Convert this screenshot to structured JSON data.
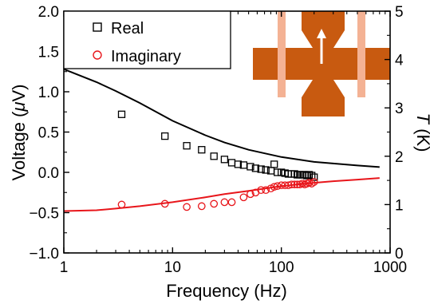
{
  "chart_data": {
    "type": "scatter",
    "xlabel": "Frequency (Hz)",
    "ylabel": "Voltage (μV)",
    "ylabel_parts": [
      "Voltage (",
      "μ",
      "V)"
    ],
    "y2label": "T (K)",
    "y2label_parts": [
      "T",
      " (K)"
    ],
    "x_scale": "log",
    "xlim": [
      1,
      1000
    ],
    "ylim": [
      -1.0,
      2.0
    ],
    "y2lim": [
      0,
      5
    ],
    "grid": false,
    "legend_position": "top-left",
    "x_ticks": [
      {
        "value": 1,
        "label": "1"
      },
      {
        "value": 10,
        "label": "10"
      },
      {
        "value": 100,
        "label": "100"
      },
      {
        "value": 1000,
        "label": "1000"
      }
    ],
    "y_ticks": [
      {
        "value": 2.0,
        "label": "2.0"
      },
      {
        "value": 1.5,
        "label": "1.5"
      },
      {
        "value": 1.0,
        "label": "1.0"
      },
      {
        "value": 0.5,
        "label": "0.5"
      },
      {
        "value": 0.0,
        "label": "0.0"
      },
      {
        "value": -0.5,
        "label": "−0.5"
      },
      {
        "value": -1.0,
        "label": "−1.0"
      }
    ],
    "y2_ticks": [
      {
        "value": 5,
        "label": "5"
      },
      {
        "value": 4,
        "label": "4"
      },
      {
        "value": 3,
        "label": "3"
      },
      {
        "value": 2,
        "label": "2"
      },
      {
        "value": 1,
        "label": "1"
      },
      {
        "value": 0,
        "label": "0"
      }
    ],
    "series": [
      {
        "name": "Real",
        "marker": "open-square",
        "color": "#000000",
        "x": [
          3.4,
          8.5,
          13.5,
          18.5,
          24,
          30,
          35,
          40,
          45,
          52,
          58,
          65,
          72,
          80,
          86,
          92,
          100,
          108,
          116,
          124,
          132,
          140,
          148,
          156,
          164,
          172,
          180,
          190,
          200
        ],
        "y": [
          0.72,
          0.45,
          0.33,
          0.28,
          0.2,
          0.16,
          0.12,
          0.1,
          0.09,
          0.07,
          0.05,
          0.04,
          0.03,
          0.02,
          0.1,
          0.0,
          0.0,
          -0.01,
          -0.02,
          -0.02,
          -0.02,
          -0.03,
          -0.03,
          -0.03,
          -0.03,
          -0.04,
          -0.03,
          -0.04,
          -0.06
        ]
      },
      {
        "name": "Imaginary",
        "marker": "open-circle",
        "color": "#e8161b",
        "x": [
          3.4,
          8.5,
          13.5,
          18.5,
          24,
          30,
          35,
          45,
          52,
          58,
          65,
          72,
          80,
          86,
          92,
          100,
          108,
          116,
          124,
          132,
          140,
          148,
          156,
          164,
          172,
          180,
          190,
          200
        ],
        "y": [
          -0.4,
          -0.39,
          -0.43,
          -0.42,
          -0.39,
          -0.37,
          -0.37,
          -0.31,
          -0.27,
          -0.25,
          -0.22,
          -0.22,
          -0.2,
          -0.18,
          -0.17,
          -0.16,
          -0.16,
          -0.16,
          -0.15,
          -0.15,
          -0.15,
          -0.15,
          -0.14,
          -0.15,
          -0.14,
          -0.13,
          -0.14,
          -0.12
        ]
      },
      {
        "name": "",
        "line": "black-model",
        "color": "#000000",
        "x": [
          1,
          2,
          3,
          5,
          10,
          20,
          30,
          50,
          100,
          200,
          300,
          500,
          800
        ],
        "y": [
          1.28,
          1.12,
          1.01,
          0.86,
          0.64,
          0.46,
          0.37,
          0.28,
          0.19,
          0.13,
          0.11,
          0.085,
          0.065
        ]
      },
      {
        "name": "",
        "line": "red-model",
        "color": "#e8161b",
        "x": [
          1,
          2,
          3,
          5,
          10,
          20,
          30,
          50,
          100,
          200,
          300,
          500,
          800
        ],
        "y": [
          -0.48,
          -0.47,
          -0.45,
          -0.42,
          -0.37,
          -0.31,
          -0.27,
          -0.23,
          -0.17,
          -0.13,
          -0.11,
          -0.09,
          -0.07
        ]
      }
    ],
    "inset": {
      "body_color": "#c85a10",
      "stripe_color": "#f4b294",
      "arrow_color": "#ffffff"
    }
  }
}
